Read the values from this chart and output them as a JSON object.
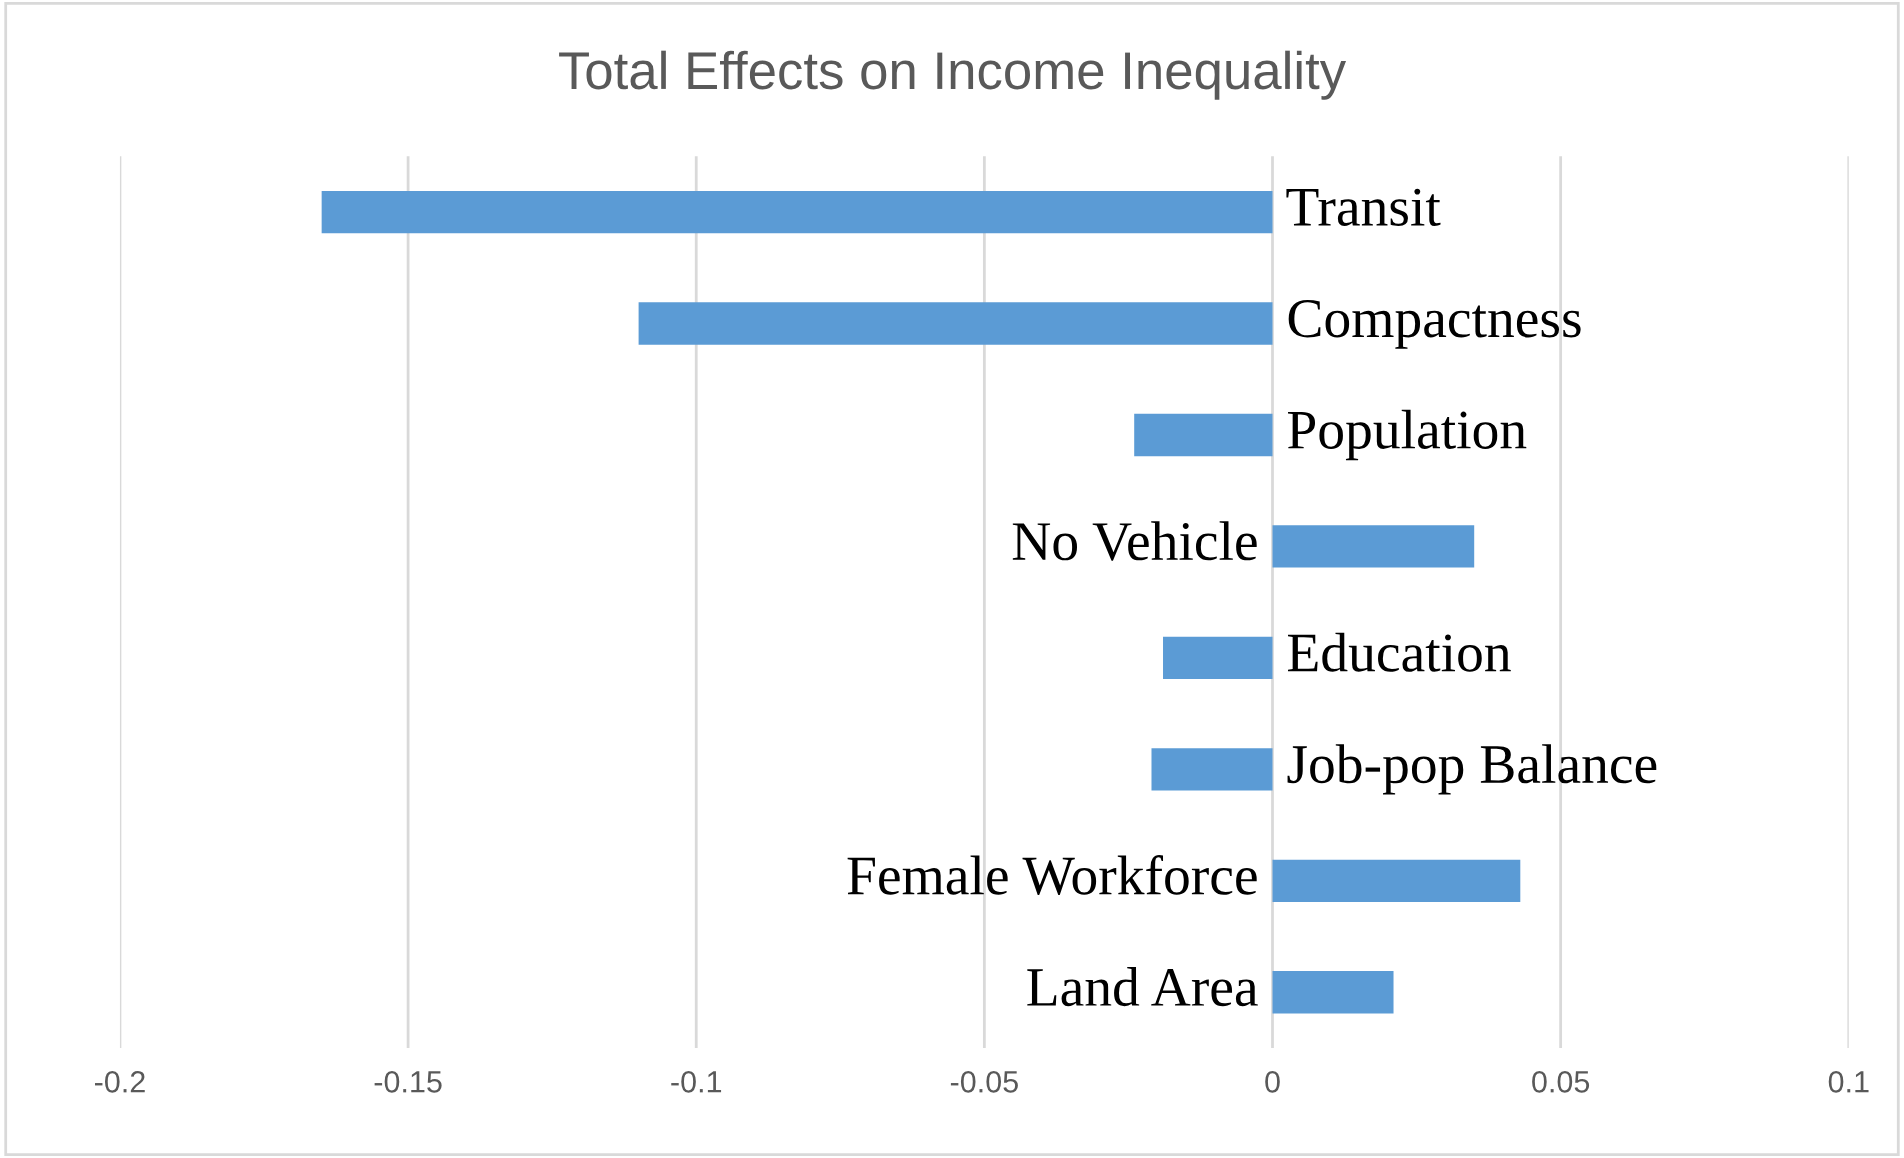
{
  "chart_data": {
    "type": "bar",
    "orientation": "horizontal",
    "title": "Total Effects on Income Inequality",
    "categories": [
      "Transit",
      "Compactness",
      "Population",
      "No Vehicle",
      "Education",
      "Job-pop Balance",
      "Female Workforce",
      "Land Area"
    ],
    "values": [
      -0.165,
      -0.11,
      -0.024,
      0.035,
      -0.019,
      -0.021,
      0.043,
      0.021
    ],
    "color": "#5b9bd5",
    "xlim": [
      -0.2,
      0.1
    ],
    "xticks": [
      -0.2,
      -0.15,
      -0.1,
      -0.05,
      0,
      0.05,
      0.1
    ],
    "grid": "x"
  }
}
